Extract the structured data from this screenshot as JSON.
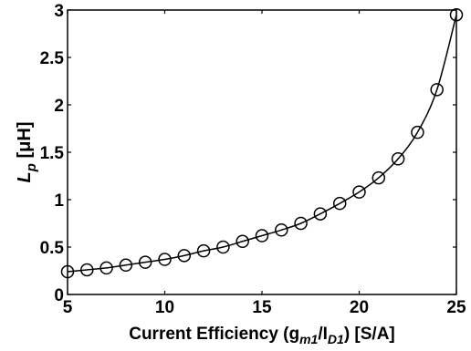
{
  "chart_data": {
    "type": "line",
    "title": "",
    "xlabel": {
      "main": "Current Efficiency (g",
      "sub1": "m1",
      "slash": "/I",
      "sub2": "D1",
      "tail": ") [S/A]"
    },
    "ylabel": {
      "main": "L",
      "sub": "p",
      "unit": " [μH]"
    },
    "xlim": [
      5,
      25
    ],
    "ylim": [
      0,
      3
    ],
    "xticks": [
      "5",
      "10",
      "15",
      "20",
      "25"
    ],
    "yticks": [
      "0",
      "0.5",
      "1",
      "1.5",
      "2",
      "2.5",
      "3"
    ],
    "grid": false,
    "line_color": "#000000",
    "marker": "circle-open",
    "series": [
      {
        "x": [
          5,
          6,
          7,
          8,
          9,
          10,
          11,
          12,
          13,
          14,
          15,
          16,
          17,
          18,
          19,
          20,
          21,
          22,
          23,
          24,
          25
        ],
        "y": [
          0.24,
          0.26,
          0.28,
          0.31,
          0.34,
          0.37,
          0.41,
          0.46,
          0.5,
          0.56,
          0.62,
          0.68,
          0.75,
          0.85,
          0.96,
          1.08,
          1.23,
          1.43,
          1.71,
          2.16,
          2.95
        ]
      }
    ]
  }
}
